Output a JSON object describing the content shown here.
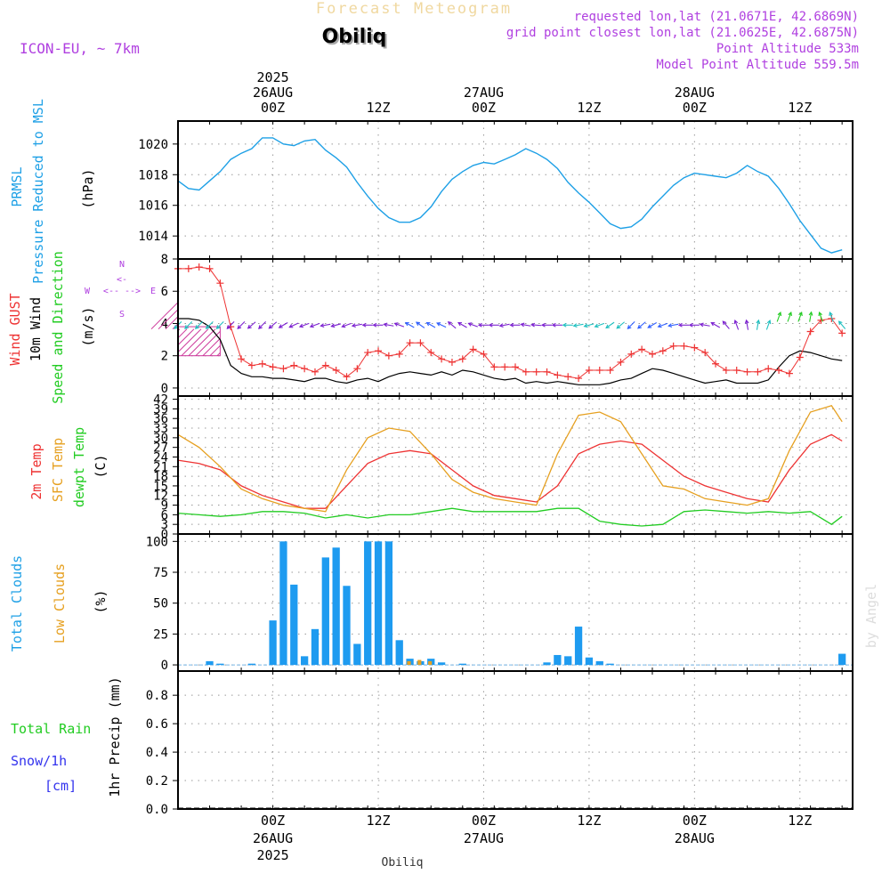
{
  "header": {
    "title": "Forecast Meteogram",
    "location": "Obiliq",
    "model": "ICON-EU, ~ 7km",
    "requested": "requested lon,lat (21.0671E, 42.6869N)",
    "grid_point": "grid point closest lon,lat (21.0625E, 42.6875N)",
    "point_altitude": "Point Altitude 533m",
    "model_altitude": "Model Point Altitude 559.5m",
    "credit": "by Angel",
    "bottom_location": "Obiliq"
  },
  "colors": {
    "pressure": "#1ea0e6",
    "gust": "#ee3333",
    "wind": "#000000",
    "direction": "#22cc22",
    "temp2m": "#ee3333",
    "sfc_temp": "#e6a020",
    "dewpt": "#22cc22",
    "total_clouds": "#1e9bf0",
    "low_clouds": "#e6a020",
    "rain": "#22cc22",
    "snow": "#3333ee",
    "header_purple": "#b040e0"
  },
  "time_axis": {
    "x_unit": "hours from 2025-08-26 00Z",
    "x_range": [
      -9,
      55
    ],
    "year_top": "2025",
    "year_bottom": "2025",
    "top_ticks": [
      {
        "x": 0,
        "line1": "2025",
        "line2": "26AUG",
        "line3": "00Z"
      },
      {
        "x": 10,
        "line1": "",
        "line2": "",
        "line3": "12Z"
      },
      {
        "x": 20,
        "line1": "",
        "line2": "27AUG",
        "line3": "00Z"
      },
      {
        "x": 30,
        "line1": "",
        "line2": "",
        "line3": "12Z"
      },
      {
        "x": 40,
        "line1": "",
        "line2": "28AUG",
        "line3": "00Z"
      },
      {
        "x": 50,
        "line1": "",
        "line2": "",
        "line3": "12Z"
      }
    ],
    "bottom_ticks": [
      {
        "x": 0,
        "line1": "00Z",
        "line2": "26AUG",
        "line3": "2025"
      },
      {
        "x": 10,
        "line1": "12Z",
        "line2": "",
        "line3": ""
      },
      {
        "x": 20,
        "line1": "00Z",
        "line2": "27AUG",
        "line3": ""
      },
      {
        "x": 30,
        "line1": "12Z",
        "line2": "",
        "line3": ""
      },
      {
        "x": 40,
        "line1": "00Z",
        "line2": "28AUG",
        "line3": ""
      },
      {
        "x": 50,
        "line1": "12Z",
        "line2": "",
        "line3": ""
      }
    ]
  },
  "chart_data": [
    {
      "type": "line",
      "panel": "pressure",
      "labels": [
        "PRMSL",
        "Pressure Reduced to MSL",
        "(hPa)"
      ],
      "yticks": [
        1014,
        1016,
        1018,
        1020
      ],
      "ylim": [
        1012.5,
        1021.5
      ],
      "series": [
        {
          "name": "PRMSL",
          "color_key": "pressure",
          "x": [
            -9,
            -8,
            -7,
            -6,
            -5,
            -4,
            -3,
            -2,
            -1,
            0,
            1,
            2,
            3,
            4,
            5,
            6,
            7,
            8,
            9,
            10,
            11,
            12,
            13,
            14,
            15,
            16,
            17,
            18,
            19,
            20,
            21,
            22,
            23,
            24,
            25,
            26,
            27,
            28,
            29,
            30,
            31,
            32,
            33,
            34,
            35,
            36,
            37,
            38,
            39,
            40,
            41,
            42,
            43,
            44,
            45,
            46,
            47,
            48,
            49,
            50,
            51,
            52,
            53,
            54
          ],
          "y": [
            1017.6,
            1017.1,
            1017.0,
            1017.6,
            1018.2,
            1019.0,
            1019.4,
            1019.7,
            1020.4,
            1020.4,
            1020.0,
            1019.9,
            1020.2,
            1020.3,
            1019.6,
            1019.1,
            1018.5,
            1017.5,
            1016.6,
            1015.8,
            1015.2,
            1014.9,
            1014.9,
            1015.2,
            1015.9,
            1016.9,
            1017.7,
            1018.2,
            1018.6,
            1018.8,
            1018.7,
            1019.0,
            1019.3,
            1019.7,
            1019.4,
            1019.0,
            1018.4,
            1017.5,
            1016.8,
            1016.2,
            1015.5,
            1014.8,
            1014.5,
            1014.6,
            1015.1,
            1015.9,
            1016.6,
            1017.3,
            1017.8,
            1018.1,
            1018.0,
            1017.9,
            1017.8,
            1018.1,
            1018.6,
            1018.2,
            1017.9,
            1017.1,
            1016.1,
            1015.0,
            1014.1,
            1013.2,
            1012.9,
            1013.1
          ]
        }
      ]
    },
    {
      "type": "line",
      "panel": "wind",
      "labels": [
        "Wind GUST",
        "10m Wind",
        "Speed and Direction",
        "(m/s)"
      ],
      "compass": {
        "n": "N",
        "s": "S",
        "w": "W",
        "e": "E"
      },
      "yticks": [
        0,
        2,
        4,
        6,
        8
      ],
      "ylim": [
        -0.5,
        8
      ],
      "series": [
        {
          "name": "Wind GUST",
          "color_key": "gust",
          "marker": "+",
          "x": [
            -9,
            -8,
            -7,
            -6,
            -5,
            -4,
            -3,
            -2,
            -1,
            0,
            1,
            2,
            3,
            4,
            5,
            6,
            7,
            8,
            9,
            10,
            11,
            12,
            13,
            14,
            15,
            16,
            17,
            18,
            19,
            20,
            21,
            22,
            23,
            24,
            25,
            26,
            27,
            28,
            29,
            30,
            31,
            32,
            33,
            34,
            35,
            36,
            37,
            38,
            39,
            40,
            41,
            42,
            43,
            44,
            45,
            46,
            47,
            48,
            49,
            50,
            51,
            52,
            53,
            54
          ],
          "y": [
            7.4,
            7.4,
            7.5,
            7.4,
            6.5,
            3.8,
            1.8,
            1.4,
            1.5,
            1.3,
            1.2,
            1.4,
            1.2,
            1.0,
            1.4,
            1.1,
            0.7,
            1.2,
            2.2,
            2.3,
            2.0,
            2.1,
            2.8,
            2.8,
            2.2,
            1.8,
            1.6,
            1.8,
            2.4,
            2.1,
            1.3,
            1.3,
            1.3,
            1.0,
            1.0,
            1.0,
            0.8,
            0.7,
            0.6,
            1.1,
            1.1,
            1.1,
            1.6,
            2.1,
            2.4,
            2.1,
            2.3,
            2.6,
            2.6,
            2.5,
            2.2,
            1.5,
            1.1,
            1.1,
            1.0,
            1.0,
            1.2,
            1.1,
            0.9,
            1.9,
            3.5,
            4.2,
            4.3,
            3.4
          ]
        },
        {
          "name": "10m Wind",
          "color_key": "wind",
          "x": [
            -9,
            -8,
            -7,
            -6,
            -5,
            -4,
            -3,
            -2,
            -1,
            0,
            1,
            2,
            3,
            4,
            5,
            6,
            7,
            8,
            9,
            10,
            11,
            12,
            13,
            14,
            15,
            16,
            17,
            18,
            19,
            20,
            21,
            22,
            23,
            24,
            25,
            26,
            27,
            28,
            29,
            30,
            31,
            32,
            33,
            34,
            35,
            36,
            37,
            38,
            39,
            40,
            41,
            42,
            43,
            44,
            45,
            46,
            47,
            48,
            49,
            50,
            51,
            52,
            53,
            54
          ],
          "y": [
            4.3,
            4.3,
            4.2,
            3.8,
            3.0,
            1.4,
            0.9,
            0.7,
            0.7,
            0.6,
            0.6,
            0.5,
            0.4,
            0.6,
            0.6,
            0.4,
            0.3,
            0.5,
            0.6,
            0.4,
            0.7,
            0.9,
            1.0,
            0.9,
            0.8,
            1.0,
            0.8,
            1.1,
            1.0,
            0.8,
            0.6,
            0.5,
            0.6,
            0.3,
            0.4,
            0.3,
            0.4,
            0.3,
            0.2,
            0.2,
            0.2,
            0.3,
            0.5,
            0.6,
            0.9,
            1.2,
            1.1,
            0.9,
            0.7,
            0.5,
            0.3,
            0.4,
            0.5,
            0.3,
            0.3,
            0.3,
            0.5,
            1.3,
            2.0,
            2.3,
            2.2,
            2.0,
            1.8,
            1.7
          ]
        }
      ],
      "direction_arrows_x": [
        -9,
        -8,
        -7,
        -6,
        -5,
        -4,
        -3,
        -2,
        -1,
        0,
        1,
        2,
        3,
        4,
        5,
        6,
        7,
        8,
        9,
        10,
        11,
        12,
        13,
        14,
        15,
        16,
        17,
        18,
        19,
        20,
        21,
        22,
        23,
        24,
        25,
        26,
        27,
        28,
        29,
        30,
        31,
        32,
        33,
        34,
        35,
        36,
        37,
        38,
        39,
        40,
        41,
        42,
        43,
        44,
        45,
        46,
        47,
        48,
        49,
        50,
        51,
        52,
        53,
        54
      ],
      "direction_arrows_to_deg": [
        225,
        225,
        225,
        225,
        225,
        225,
        225,
        230,
        225,
        230,
        240,
        245,
        250,
        250,
        260,
        255,
        250,
        260,
        270,
        270,
        280,
        290,
        300,
        305,
        300,
        295,
        310,
        300,
        290,
        270,
        270,
        260,
        270,
        280,
        275,
        270,
        270,
        270,
        260,
        255,
        250,
        235,
        230,
        225,
        230,
        240,
        250,
        260,
        270,
        270,
        280,
        300,
        320,
        340,
        350,
        10,
        20,
        20,
        20,
        20,
        10,
        340,
        340,
        320
      ],
      "calm_hatch": {
        "x_from": -9,
        "x_to": -5,
        "y_from": 2,
        "y_to": 3.8
      }
    },
    {
      "type": "line",
      "panel": "temperature",
      "labels": [
        "2m Temp",
        "SFC Temp",
        "dewpt Temp",
        "(C)"
      ],
      "yticks": [
        0,
        3,
        6,
        9,
        12,
        15,
        18,
        21,
        24,
        27,
        30,
        33,
        36,
        39,
        42
      ],
      "ylim": [
        0,
        43
      ],
      "series": [
        {
          "name": "2m Temp",
          "color_key": "temp2m",
          "x": [
            -9,
            -7,
            -5,
            -3,
            -1,
            1,
            3,
            5,
            7,
            9,
            11,
            13,
            15,
            17,
            19,
            21,
            23,
            25,
            27,
            29,
            31,
            33,
            35,
            37,
            39,
            41,
            43,
            45,
            47,
            49,
            51,
            53,
            54
          ],
          "y": [
            23,
            22,
            20,
            15,
            12,
            10,
            8,
            8,
            15,
            22,
            25,
            26,
            25,
            20,
            15,
            12,
            11,
            10,
            15,
            25,
            28,
            29,
            28,
            23,
            18,
            15,
            13,
            11,
            10,
            20,
            28,
            31,
            29
          ]
        },
        {
          "name": "SFC Temp",
          "color_key": "sfc_temp",
          "x": [
            -9,
            -7,
            -5,
            -3,
            -1,
            1,
            3,
            5,
            7,
            9,
            11,
            13,
            15,
            17,
            19,
            21,
            23,
            25,
            27,
            29,
            31,
            33,
            35,
            37,
            39,
            41,
            43,
            45,
            47,
            49,
            51,
            53,
            54
          ],
          "y": [
            31,
            27,
            21,
            14,
            11,
            9,
            8,
            7,
            20,
            30,
            33,
            32,
            25,
            17,
            13,
            11,
            10,
            9,
            25,
            37,
            38,
            35,
            25,
            15,
            14,
            11,
            10,
            9,
            11,
            26,
            38,
            40,
            35
          ]
        },
        {
          "name": "dewpt Temp",
          "color_key": "dewpt",
          "x": [
            -9,
            -7,
            -5,
            -3,
            -1,
            1,
            3,
            5,
            7,
            9,
            11,
            13,
            15,
            17,
            19,
            21,
            23,
            25,
            27,
            29,
            31,
            33,
            35,
            37,
            39,
            41,
            43,
            45,
            47,
            49,
            51,
            53,
            54
          ],
          "y": [
            6.5,
            6,
            5.5,
            6,
            7,
            7,
            6.5,
            5,
            6,
            5,
            6,
            6,
            7,
            8,
            7,
            7,
            7,
            7,
            8,
            8,
            4,
            3,
            2.5,
            3,
            7,
            7.5,
            7,
            6.5,
            7,
            6.5,
            7,
            3,
            5.5
          ]
        }
      ]
    },
    {
      "type": "bar",
      "panel": "clouds",
      "labels": [
        "Total Clouds",
        "Low Clouds",
        "(%)"
      ],
      "yticks": [
        0,
        25,
        50,
        75,
        100
      ],
      "ylim": [
        -5,
        106
      ],
      "series": [
        {
          "name": "Total Clouds",
          "color_key": "total_clouds",
          "x": [
            -6,
            -5,
            -2,
            0,
            1,
            2,
            3,
            4,
            5,
            6,
            7,
            8,
            9,
            10,
            11,
            12,
            13,
            14,
            15,
            16,
            18,
            26,
            27,
            28,
            29,
            30,
            31,
            32,
            54
          ],
          "y": [
            3,
            1,
            1,
            36,
            100,
            65,
            7,
            29,
            87,
            95,
            64,
            17,
            100,
            100,
            100,
            20,
            5,
            3,
            5,
            2,
            1,
            2,
            8,
            7,
            31,
            6,
            3,
            1,
            9
          ]
        },
        {
          "name": "Low Clouds",
          "color_key": "low_clouds",
          "x": [
            13,
            14,
            15
          ],
          "y": [
            3,
            4,
            3
          ]
        }
      ]
    },
    {
      "type": "bar",
      "panel": "precipitation",
      "labels": [
        "Total Rain",
        "Snow/1h",
        "[cm]",
        "1hr Precip (mm)"
      ],
      "yticks": [
        0,
        0.2,
        0.4,
        0.6,
        0.8
      ],
      "ylim": [
        0,
        0.97
      ],
      "series": [
        {
          "name": "Total Rain",
          "color_key": "rain",
          "x": [],
          "y": []
        },
        {
          "name": "Snow/1h",
          "color_key": "snow",
          "x": [],
          "y": []
        }
      ]
    }
  ]
}
